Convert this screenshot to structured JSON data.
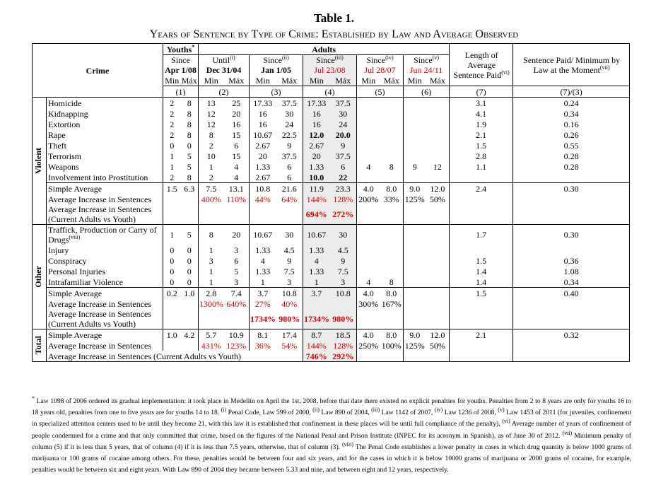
{
  "header": {
    "title": "Table 1.",
    "subtitle": "Years of Sentence by Type of Crime: Established by Law and Average Observed"
  },
  "table": {
    "crime_label": "Crime",
    "youths_label": "Youths",
    "youths_note": "*",
    "adults_label": "Adults",
    "columns": [
      {
        "since": "Since",
        "date": "Apr 1/08",
        "number": "(1)"
      },
      {
        "since": "Until",
        "note": "(i)",
        "date": "Dec 31/04",
        "number": "(2)"
      },
      {
        "since": "Since",
        "note": "(ii)",
        "date": "Jan 1/05",
        "number": "(3)"
      },
      {
        "since": "Since",
        "note": "(iii)",
        "date": "Jul 23/08",
        "number": "(4)"
      },
      {
        "since": "Since",
        "note": "(iv)",
        "date": "Jul 28/07",
        "number": "(5)"
      },
      {
        "since": "Since",
        "note": "(v)",
        "date": "Jun 24/11",
        "number": "(6)"
      }
    ],
    "min_label": "Min",
    "max_label": "Máx",
    "length_label": "Length of Average Sentence Paid",
    "length_note": "(vi)",
    "length_number": "(7)",
    "ratio_label": "Sentence Paid/ Minimum by Law at the Moment",
    "ratio_note": "(vii)",
    "ratio_number": "(7)/(3)",
    "groups": [
      {
        "label": "Violent",
        "rows": [
          {
            "name": "Homicide",
            "cells": [
              "2",
              "8",
              "13",
              "25",
              "17.33",
              "37.5",
              "17.33",
              "37.5",
              null,
              null,
              null,
              null,
              "3.1",
              "0.24"
            ]
          },
          {
            "name": "Kidnapping",
            "cells": [
              "2",
              "8",
              "12",
              "20",
              "16",
              "30",
              "16",
              "30",
              null,
              null,
              null,
              null,
              "4.1",
              "0.34"
            ]
          },
          {
            "name": "Extortion",
            "cells": [
              "2",
              "8",
              "12",
              "16",
              "16",
              "24",
              "16",
              "24",
              null,
              null,
              null,
              null,
              "1.9",
              "0.16"
            ]
          },
          {
            "name": "Rape",
            "cells": [
              "2",
              "8",
              "8",
              "15",
              "10.67",
              "22.5",
              "12.0",
              "20.0",
              null,
              null,
              null,
              null,
              "2.1",
              "0.26"
            ]
          },
          {
            "name": "Theft",
            "cells": [
              "0",
              "0",
              "2",
              "6",
              "2.67",
              "9",
              "2.67",
              "9",
              null,
              null,
              null,
              null,
              "1.5",
              "0.55"
            ]
          },
          {
            "name": "Terrorism",
            "cells": [
              "1",
              "5",
              "10",
              "15",
              "20",
              "37.5",
              "20",
              "37.5",
              null,
              null,
              null,
              null,
              "2.8",
              "0.28"
            ]
          },
          {
            "name": "Weapons",
            "cells": [
              "1",
              "5",
              "1",
              "4",
              "1.33",
              "6",
              "1.33",
              "6",
              "4",
              "8",
              "9",
              "12",
              "1.1",
              "0.28"
            ]
          },
          {
            "name": "Involvement into Prostitution",
            "cells": [
              "2",
              "8",
              "2",
              "4",
              "2.67",
              "6",
              "10.0",
              "22",
              null,
              null,
              null,
              null,
              null,
              null
            ]
          },
          {
            "name": "Simple Average",
            "cells": [
              "1.5",
              "6.3",
              "7.5",
              "13.1",
              "10.8",
              "21.6",
              "11.9",
              "23.3",
              "4.0",
              "8.0",
              "9.0",
              "12.0",
              "2.4",
              "0.30"
            ]
          },
          {
            "name": "Average Increase in Sentences",
            "cells": [
              null,
              null,
              "400%",
              "110%",
              "44%",
              "64%",
              "144%",
              "128%",
              "200%",
              "33%",
              "125%",
              "50%",
              null,
              null
            ]
          },
          {
            "name": "Average Increase in Sentences (Current Adults vs Youth)",
            "cells": [
              null,
              null,
              null,
              null,
              null,
              null,
              "694%",
              "272%",
              null,
              null,
              null,
              null,
              null,
              null
            ]
          }
        ]
      },
      {
        "label": "Other",
        "rows": [
          {
            "name": "Traffick, Production or Carry of Drugs",
            "note": "(viii)",
            "cells": [
              "1",
              "5",
              "8",
              "20",
              "10.67",
              "30",
              "10.67",
              "30",
              null,
              null,
              null,
              null,
              "1.7",
              "0.30"
            ]
          },
          {
            "name": "Injury",
            "cells": [
              "0",
              "0",
              "1",
              "3",
              "1.33",
              "4.5",
              "1.33",
              "4.5",
              null,
              null,
              null,
              null,
              null,
              null
            ]
          },
          {
            "name": "Conspiracy",
            "cells": [
              "0",
              "0",
              "3",
              "6",
              "4",
              "9",
              "4",
              "9",
              null,
              null,
              null,
              null,
              "1.5",
              "0.36"
            ]
          },
          {
            "name": "Personal Injuries",
            "cells": [
              "0",
              "0",
              "1",
              "5",
              "1.33",
              "7.5",
              "1.33",
              "7.5",
              null,
              null,
              null,
              null,
              "1.4",
              "1.08"
            ]
          },
          {
            "name": "Intrafamiliar Violence",
            "cells": [
              "0",
              "0",
              "1",
              "3",
              "1",
              "3",
              "1",
              "3",
              "4",
              "8",
              null,
              null,
              "1.4",
              "0.34"
            ]
          },
          {
            "name": "Simple Average",
            "cells": [
              "0.2",
              "1.0",
              "2.8",
              "7.4",
              "3.7",
              "10.8",
              "3.7",
              "10.8",
              "4.0",
              "8.0",
              null,
              null,
              "1.5",
              "0.40"
            ]
          },
          {
            "name": "Average Increase in Sentences",
            "cells": [
              null,
              null,
              "1300%",
              "640%",
              "27%",
              "40%",
              null,
              null,
              "300%",
              "167%",
              null,
              null,
              null,
              null
            ]
          },
          {
            "name": "Average Increase in Sentences (Current Adults vs Youth)",
            "cells": [
              null,
              null,
              null,
              null,
              "1734%",
              "980%",
              "1734%",
              "980%",
              null,
              null,
              null,
              null,
              null,
              null
            ]
          }
        ]
      },
      {
        "label": "Total",
        "rows": [
          {
            "name": "Simple Average",
            "cells": [
              "1.0",
              "4.2",
              "5.7",
              "10.9",
              "8.1",
              "17.4",
              "8.7",
              "18.5",
              "4.0",
              "8.0",
              "9.0",
              "12.0",
              "2.1",
              "0.32"
            ]
          },
          {
            "name": "Average Increase in Sentences",
            "cells": [
              null,
              null,
              "431%",
              "123%",
              "36%",
              "54%",
              "144%",
              "128%",
              "250%",
              "100%",
              "125%",
              "50%",
              null,
              null
            ]
          },
          {
            "name": "Average Increase in Sentences (Current Adults vs Youth)",
            "cells": [
              null,
              null,
              null,
              null,
              null,
              null,
              "746%",
              "292%",
              null,
              null,
              null,
              null,
              null,
              null
            ]
          }
        ]
      }
    ]
  },
  "footnotes": [
    {
      "mark": "*",
      "text": "Law 1098 of 2006 ordered its gradual implementation: it took place in Medellín on April the 1st, 2008, before that date there existed no explicit penalties for youths. Penalties from 2 to 8 years are only for youths 16 to 18 years old, penalties from one to five years are for youths 14 to 18."
    },
    {
      "mark": "(i)",
      "text": "Penal Code, Law 599 of 2000,"
    },
    {
      "mark": "(ii)",
      "text": "Law 890 of 2004,"
    },
    {
      "mark": "(iii)",
      "text": "Law 1142 of 2007,"
    },
    {
      "mark": "(iv)",
      "text": "Law 1236 of 2008,"
    },
    {
      "mark": "(v)",
      "text": "Law 1453 of 2011 (for juveniles, confinement in specialized attention centers used to be until they become 21, with this law it is established that confinement in these places will be until full compliance of the penalty),"
    },
    {
      "mark": "(vi)",
      "text": "Average number of years of confinement of people condemned for a crime and that only committed that crime, based on the figures of the National Penal and Prison Institute (INPEC for its acronym in Spanish), as of June 30 of 2012."
    },
    {
      "mark": "(vii)",
      "text": "Minimum penalty of column (5) if it is less than 5 years, that of column (4) if it is less than 7.5 years, otherwise, that of column (3)."
    },
    {
      "mark": "(viii)",
      "text": "The Penal Code establishes a lower penalty in cases in which drug quantity is below 1000 grams of marijuana or 100 grams of cocaine among others. For these, penalties would be between four and six years, and for the cases in which it is below 10000 grams of marijuana or 2000 grams of cocaine, for example, penalties would be between six and eight years. With Law 890 of 2004 they became between 5.33 and nine, and between eight and 12 years, respectively."
    }
  ]
}
